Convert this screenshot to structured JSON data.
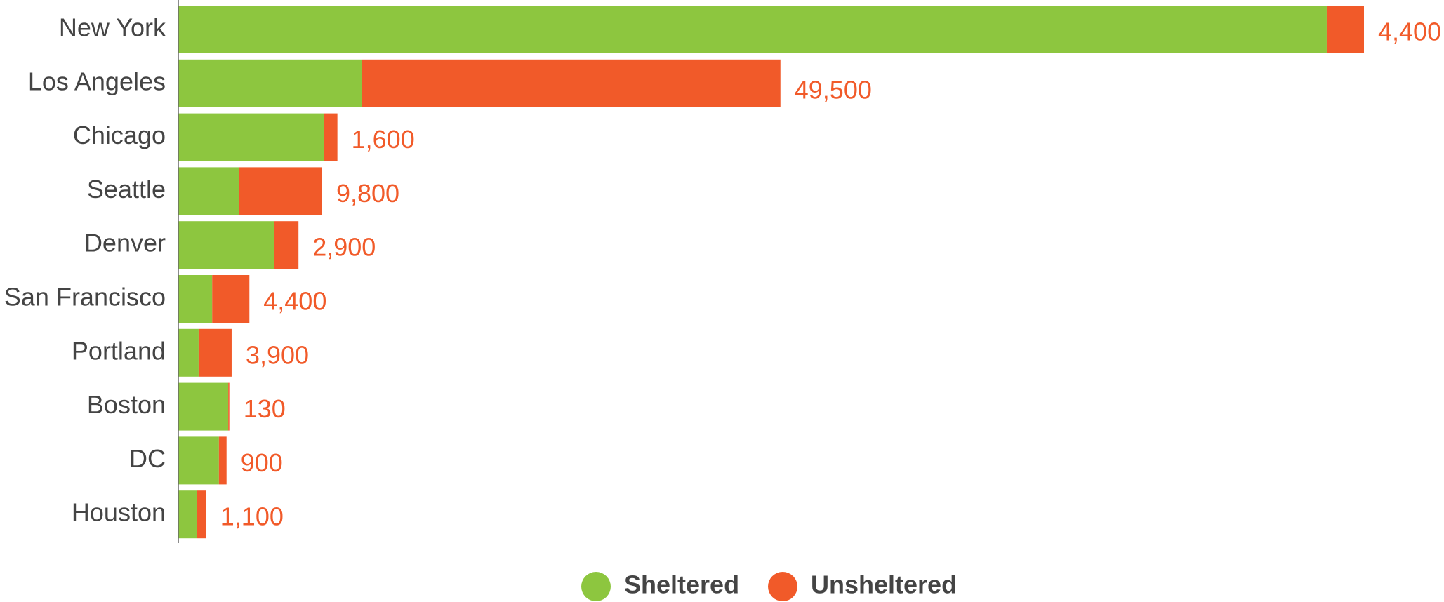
{
  "chart_data": {
    "type": "stacked-bar-horizontal",
    "categories": [
      "New York",
      "Los Angeles",
      "Chicago",
      "Seattle",
      "Denver",
      "San Francisco",
      "Portland",
      "Boston",
      "DC",
      "Houston"
    ],
    "series": [
      {
        "name": "Sheltered",
        "color": "#8dc63f",
        "values": [
          135700,
          21650,
          17200,
          7200,
          11300,
          4000,
          2400,
          5900,
          4800,
          2200
        ]
      },
      {
        "name": "Unsheltered",
        "color": "#f15a29",
        "values": [
          4400,
          49500,
          1600,
          9800,
          2900,
          4400,
          3900,
          130,
          900,
          1100
        ],
        "value_labels": [
          "4,400",
          "49,500",
          "1,600",
          "9,800",
          "2,900",
          "4,400",
          "3,900",
          "130",
          "900",
          "1,100"
        ]
      }
    ],
    "legend": "bottom"
  }
}
